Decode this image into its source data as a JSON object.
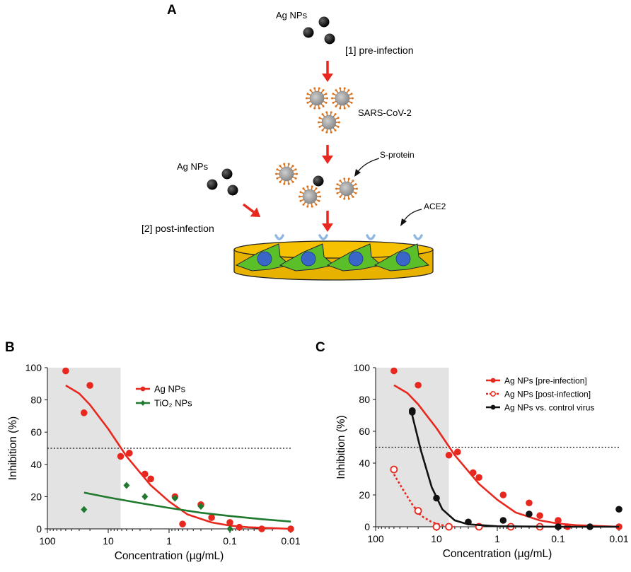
{
  "colors": {
    "red": "#e8281f",
    "green": "#1f7a2e",
    "black": "#111111",
    "shade": "#e3e3e3",
    "dish": "#f5c100",
    "cell": "#5bbf2a",
    "nucleus": "#3a66c8",
    "receptor": "#8fb8e0",
    "virus": "#9a9a9a",
    "spike": "#d9731f"
  },
  "panelA": {
    "letter": "A",
    "ag_label_top": "Ag NPs",
    "pre_label": "[1] pre-infection",
    "virus_label": "SARS-CoV-2",
    "sprotein_label": "S-protein",
    "ag_label_left": "Ag NPs",
    "post_label": "[2] post-infection",
    "ace2_label": "ACE2"
  },
  "chart_data": [
    {
      "panel": "B",
      "type": "scatter",
      "xlabel": "Concentration (µg/mL)",
      "ylabel": "Inhibition (%)",
      "x_scale": "log-reversed",
      "xlim": [
        100,
        0.01
      ],
      "ylim": [
        0,
        100
      ],
      "x_ticks": [
        "100",
        "10",
        "1",
        "0.1",
        "0.01"
      ],
      "y_ticks": [
        "0",
        "20",
        "40",
        "60",
        "80",
        "100"
      ],
      "threshold": 50,
      "shaded_region": [
        100,
        6.25
      ],
      "legend_position": "top-right",
      "series": [
        {
          "name": "Ag NPs",
          "color": "#e8281f",
          "marker": "circle",
          "points": [
            {
              "x": 50,
              "y": 98
            },
            {
              "x": 25,
              "y": 72
            },
            {
              "x": 20,
              "y": 89
            },
            {
              "x": 6.25,
              "y": 45
            },
            {
              "x": 4.5,
              "y": 47
            },
            {
              "x": 2.5,
              "y": 34
            },
            {
              "x": 2,
              "y": 31
            },
            {
              "x": 0.8,
              "y": 20
            },
            {
              "x": 0.6,
              "y": 3
            },
            {
              "x": 0.3,
              "y": 15
            },
            {
              "x": 0.2,
              "y": 7
            },
            {
              "x": 0.1,
              "y": 4
            },
            {
              "x": 0.07,
              "y": 1
            },
            {
              "x": 0.03,
              "y": 0
            },
            {
              "x": 0.01,
              "y": 0
            }
          ],
          "fit": [
            {
              "x": 50,
              "y": 89
            },
            {
              "x": 30,
              "y": 84
            },
            {
              "x": 20,
              "y": 77
            },
            {
              "x": 10,
              "y": 62
            },
            {
              "x": 5,
              "y": 45
            },
            {
              "x": 2,
              "y": 27
            },
            {
              "x": 1,
              "y": 17
            },
            {
              "x": 0.5,
              "y": 9
            },
            {
              "x": 0.2,
              "y": 4
            },
            {
              "x": 0.1,
              "y": 2
            },
            {
              "x": 0.05,
              "y": 1
            },
            {
              "x": 0.01,
              "y": 0
            }
          ]
        },
        {
          "name": "TiO₂ NPs",
          "color": "#1f7a2e",
          "marker": "diamond",
          "points": [
            {
              "x": 25,
              "y": 12
            },
            {
              "x": 5,
              "y": 27
            },
            {
              "x": 2.5,
              "y": 20
            },
            {
              "x": 0.8,
              "y": 19
            },
            {
              "x": 0.3,
              "y": 14
            },
            {
              "x": 0.1,
              "y": 0
            }
          ],
          "fit": [
            {
              "x": 25,
              "y": 22.5
            },
            {
              "x": 10,
              "y": 19.5
            },
            {
              "x": 3,
              "y": 16
            },
            {
              "x": 1,
              "y": 13
            },
            {
              "x": 0.3,
              "y": 10
            },
            {
              "x": 0.1,
              "y": 8
            },
            {
              "x": 0.03,
              "y": 6
            },
            {
              "x": 0.01,
              "y": 4.5
            }
          ]
        }
      ]
    },
    {
      "panel": "C",
      "type": "scatter",
      "xlabel": "Concentration (µg/mL)",
      "ylabel": "Inhibition (%)",
      "x_scale": "log-reversed",
      "xlim": [
        100,
        0.01
      ],
      "ylim": [
        0,
        100
      ],
      "x_ticks": [
        "100",
        "10",
        "1",
        "0.1",
        "0.01"
      ],
      "y_ticks": [
        "0",
        "20",
        "40",
        "60",
        "80",
        "100"
      ],
      "threshold": 50,
      "shaded_region": [
        100,
        6.25
      ],
      "legend_position": "top-right",
      "series": [
        {
          "name": "Ag NPs [pre-infection]",
          "color": "#e8281f",
          "marker": "circle",
          "dashed": false,
          "points": [
            {
              "x": 50,
              "y": 98
            },
            {
              "x": 20,
              "y": 89
            },
            {
              "x": 6.25,
              "y": 45
            },
            {
              "x": 4.5,
              "y": 47
            },
            {
              "x": 2.5,
              "y": 34
            },
            {
              "x": 2,
              "y": 31
            },
            {
              "x": 0.8,
              "y": 20
            },
            {
              "x": 0.3,
              "y": 15
            },
            {
              "x": 0.2,
              "y": 7
            },
            {
              "x": 0.1,
              "y": 4
            },
            {
              "x": 0.07,
              "y": 0
            },
            {
              "x": 0.01,
              "y": 0
            }
          ],
          "fit": [
            {
              "x": 50,
              "y": 89
            },
            {
              "x": 30,
              "y": 84
            },
            {
              "x": 20,
              "y": 77
            },
            {
              "x": 10,
              "y": 62
            },
            {
              "x": 5,
              "y": 45
            },
            {
              "x": 2,
              "y": 27
            },
            {
              "x": 1,
              "y": 17
            },
            {
              "x": 0.5,
              "y": 9
            },
            {
              "x": 0.2,
              "y": 4
            },
            {
              "x": 0.1,
              "y": 2
            },
            {
              "x": 0.05,
              "y": 1
            },
            {
              "x": 0.01,
              "y": 0
            }
          ]
        },
        {
          "name": "Ag NPs [post-infection]",
          "color": "#e8281f",
          "marker": "open-circle",
          "dashed": true,
          "points": [
            {
              "x": 50,
              "y": 36
            },
            {
              "x": 20,
              "y": 10
            },
            {
              "x": 10,
              "y": 0
            },
            {
              "x": 6.25,
              "y": 0
            },
            {
              "x": 2,
              "y": 0
            },
            {
              "x": 0.6,
              "y": 0
            },
            {
              "x": 0.2,
              "y": 0
            }
          ],
          "fit": [
            {
              "x": 50,
              "y": 33
            },
            {
              "x": 35,
              "y": 23
            },
            {
              "x": 25,
              "y": 14
            },
            {
              "x": 18,
              "y": 7
            },
            {
              "x": 12,
              "y": 3
            },
            {
              "x": 8,
              "y": 1
            },
            {
              "x": 5,
              "y": 0
            }
          ]
        },
        {
          "name": "Ag NPs vs. control virus",
          "color": "#111111",
          "marker": "circle",
          "dashed": false,
          "points": [
            {
              "x": 25,
              "y": 72
            },
            {
              "x": 25,
              "y": 73
            },
            {
              "x": 10,
              "y": 18
            },
            {
              "x": 3,
              "y": 3
            },
            {
              "x": 0.8,
              "y": 4
            },
            {
              "x": 0.3,
              "y": 8
            },
            {
              "x": 0.1,
              "y": 0
            },
            {
              "x": 0.03,
              "y": 0
            },
            {
              "x": 0.01,
              "y": 11
            }
          ],
          "fit": [
            {
              "x": 25,
              "y": 70
            },
            {
              "x": 18,
              "y": 48
            },
            {
              "x": 12,
              "y": 25
            },
            {
              "x": 8,
              "y": 11
            },
            {
              "x": 5,
              "y": 4
            },
            {
              "x": 3,
              "y": 1.5
            },
            {
              "x": 1,
              "y": 0.3
            },
            {
              "x": 0.1,
              "y": 0
            },
            {
              "x": 0.01,
              "y": 0
            }
          ]
        }
      ]
    }
  ]
}
